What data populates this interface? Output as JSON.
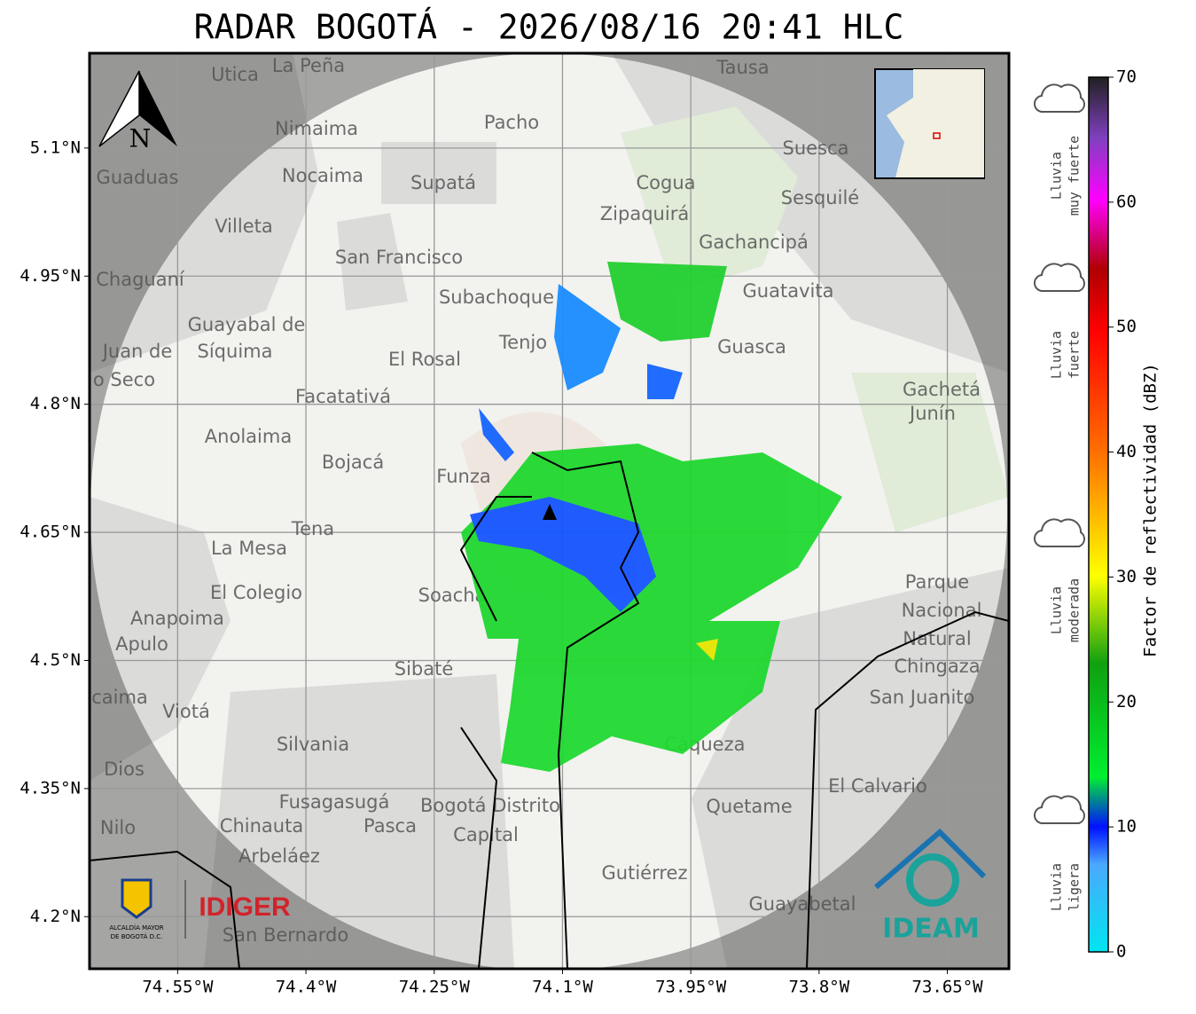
{
  "title": "RADAR BOGOTÁ - 2026/08/16 20:41 HLC",
  "map": {
    "xlim": [
      -74.653,
      -73.578
    ],
    "ylim": [
      4.139,
      5.211
    ],
    "xticks": [
      {
        "value": -74.55,
        "label": "74.55°W"
      },
      {
        "value": -74.4,
        "label": "74.4°W"
      },
      {
        "value": -74.25,
        "label": "74.25°W"
      },
      {
        "value": -74.1,
        "label": "74.1°W"
      },
      {
        "value": -73.95,
        "label": "73.95°W"
      },
      {
        "value": -73.8,
        "label": "73.8°W"
      },
      {
        "value": -73.65,
        "label": "73.65°W"
      }
    ],
    "yticks": [
      {
        "value": 4.2,
        "label": "4.2°N"
      },
      {
        "value": 4.35,
        "label": "4.35°N"
      },
      {
        "value": 4.5,
        "label": "4.5°N"
      },
      {
        "value": 4.65,
        "label": "4.65°N"
      },
      {
        "value": 4.8,
        "label": "4.8°N"
      },
      {
        "value": 4.95,
        "label": "4.95°N"
      },
      {
        "value": 5.1,
        "label": "5.1°N"
      }
    ],
    "grid": true,
    "north": "N",
    "places": [
      "La Peña",
      "Utica",
      "Tausa",
      "Pacho",
      "Nimaima",
      "Suesca",
      "Guaduas",
      "Nocaima",
      "Supatá",
      "Cogua",
      "Sesquilé",
      "Zipaquirá",
      "Villeta",
      "Gachancipá",
      "San Francisco",
      "Chaguaní",
      "Guatavita",
      "Subachoque",
      "Guayabal de",
      "Síquima",
      "Tenjo",
      "El Rosal",
      "Guasca",
      "Juan de",
      "o Seco",
      "Facatativá",
      "Gachetá",
      "Junín",
      "Anolaima",
      "Bojacá",
      "Funza",
      "Tena",
      "La Mesa",
      "El Colegio",
      "Soacha",
      "Parque",
      "Nacional",
      "Natural",
      "Chingaza",
      "Anapoima",
      "Apulo",
      "Sibaté",
      "San Juanito",
      "caima",
      "Viotá",
      "Silvania",
      "Cáqueza",
      "Dios",
      "El Calvario",
      "Fusagasugá",
      "Bogotá Distrito",
      "Capital",
      "Quetame",
      "Nilo",
      "Chinauta",
      "Pasca",
      "Arbeláez",
      "Gutiérrez",
      "Guayabetal",
      "San Bernardo"
    ],
    "logos": {
      "alcaldia": [
        "ALCALDÍA MAYOR",
        "DE BOGOTÁ D.C."
      ],
      "idiger": "IDIGER",
      "ideam": "IDEAM"
    }
  },
  "colorbar": {
    "label": "Factor de reflectividad (dBZ)",
    "ylim": [
      0,
      70
    ],
    "yticks": [
      0,
      10,
      20,
      30,
      40,
      50,
      60,
      70
    ],
    "categories": [
      [
        "Lluvia",
        "muy fuerte"
      ],
      [
        "Lluvia",
        "fuerte"
      ],
      [
        "Lluvia",
        "moderada"
      ],
      [
        "Lluvia",
        "ligera"
      ]
    ]
  }
}
